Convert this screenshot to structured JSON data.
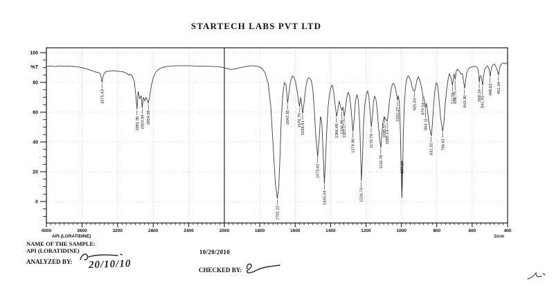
{
  "header": {
    "title": "STARTECH LABS PVT LTD"
  },
  "footer": {
    "name_of_sample_label": "NAME OF THE SAMPLE:",
    "sample_name": "API (LORATIDINE)",
    "print_date": "10/20/2010",
    "analyzed_by_label": "ANALYZED BY:",
    "analyzed_handwritten_date": "20/10/10",
    "checked_by_label": "CHECKED BY:"
  },
  "colors": {
    "curve": "#3a3a3a",
    "grid": "#aaaaaa",
    "axis": "#000000",
    "background": "#ffffff"
  },
  "chart_data": {
    "type": "line",
    "title": "STARTECH LABS PVT LTD",
    "xlabel": "1/cm",
    "ylabel": "%T",
    "sample_label": "API (LORATIDINE)",
    "grid": "dotted",
    "x_axis": {
      "unit": "1/cm",
      "break_at": 2000,
      "segments": [
        {
          "min": 2000,
          "max": 4000,
          "major": 400,
          "minor": 50,
          "labels": [
            4000,
            3600,
            3200,
            2800,
            2400,
            2000
          ]
        },
        {
          "min": 400,
          "max": 2000,
          "major": 200,
          "minor": 25,
          "labels": [
            1800,
            1600,
            1400,
            1200,
            1000,
            800,
            600,
            400
          ]
        }
      ]
    },
    "y_axis": {
      "min": 0,
      "max": 100,
      "major": 20,
      "minor": 5,
      "labels": [
        100,
        80,
        60,
        40,
        20,
        0
      ],
      "unit": "%T"
    },
    "peaks": [
      {
        "label": "3375.43",
        "wn": 3375.43,
        "t": 80
      },
      {
        "label": "2981.95",
        "wn": 2981.95,
        "t": 62
      },
      {
        "label": "2924.09",
        "wn": 2924.09,
        "t": 63
      },
      {
        "label": "2854.65",
        "wn": 2854.65,
        "t": 66
      },
      {
        "label": "1701.22",
        "wn": 1701.22,
        "t": 2
      },
      {
        "label": "1643.35",
        "wn": 1643.35,
        "t": 66
      },
      {
        "label": "1576.70",
        "wn": 1576.7,
        "t": 64
      },
      {
        "label": "1558.41",
        "wn": 1558.41,
        "t": 59
      },
      {
        "label": "1473.62",
        "wn": 1473.62,
        "t": 30
      },
      {
        "label": "1435.04",
        "wn": 1435.04,
        "t": 12
      },
      {
        "label": "1366.66",
        "wn": 1366.66,
        "t": 57
      },
      {
        "label": "1336.96",
        "wn": 1336.96,
        "t": 61,
        "lt": 55
      },
      {
        "label": "1323.17",
        "wn": 1323.17,
        "t": 57
      },
      {
        "label": "1274.95",
        "wn": 1274.95,
        "t": 47
      },
      {
        "label": "1226.73",
        "wn": 1226.73,
        "t": 14
      },
      {
        "label": "1170.79",
        "wn": 1170.79,
        "t": 50
      },
      {
        "label": "1116.78",
        "wn": 1116.78,
        "t": 36
      },
      {
        "label": "1095.57",
        "wn": 1095.57,
        "t": 57
      },
      {
        "label": "1080.14",
        "wn": 1080.14,
        "t": 54,
        "lt": 48
      },
      {
        "label": "1022.27",
        "wn": 1022.27,
        "t": 68
      },
      {
        "label": "997.20",
        "wn": 997.2,
        "t": 3,
        "lt": 27
      },
      {
        "label": "925.83",
        "wn": 925.83,
        "t": 74
      },
      {
        "label": "879.54",
        "wn": 879.54,
        "t": 71
      },
      {
        "label": "864.11",
        "wn": 864.11,
        "t": 63,
        "lt": 56
      },
      {
        "label": "831.32",
        "wn": 831.32,
        "t": 44
      },
      {
        "label": "766.61",
        "wn": 766.61,
        "t": 47
      },
      {
        "label": "711.08",
        "wn": 711.08,
        "t": 78
      },
      {
        "label": "696.75",
        "wn": 696.75,
        "t": 82,
        "lt": 74
      },
      {
        "label": "643.30",
        "wn": 643.3,
        "t": 76
      },
      {
        "label": "560.14",
        "wn": 560.14,
        "t": 80
      },
      {
        "label": "541.93",
        "wn": 541.93,
        "t": 78,
        "lt": 71
      },
      {
        "label": "498.62",
        "wn": 498.62,
        "t": 84
      },
      {
        "label": "451.34",
        "wn": 451.34,
        "t": 85
      }
    ],
    "trace": [
      [
        4000,
        90.8
      ],
      [
        3950,
        91
      ],
      [
        3900,
        90.6
      ],
      [
        3850,
        91.1
      ],
      [
        3800,
        90.8
      ],
      [
        3750,
        90.9
      ],
      [
        3700,
        90.7
      ],
      [
        3650,
        90.4
      ],
      [
        3600,
        89.9
      ],
      [
        3550,
        89.1
      ],
      [
        3500,
        88.1
      ],
      [
        3460,
        87.2
      ],
      [
        3430,
        86.8
      ],
      [
        3400,
        86.2
      ],
      [
        3388,
        84.5
      ],
      [
        3375,
        80
      ],
      [
        3363,
        84
      ],
      [
        3350,
        86
      ],
      [
        3330,
        87.2
      ],
      [
        3300,
        87.6
      ],
      [
        3260,
        87.8
      ],
      [
        3220,
        87.7
      ],
      [
        3180,
        87.4
      ],
      [
        3140,
        87.1
      ],
      [
        3100,
        86.3
      ],
      [
        3075,
        84.8
      ],
      [
        3058,
        85.6
      ],
      [
        3035,
        84.2
      ],
      [
        3012,
        80.5
      ],
      [
        2996,
        72
      ],
      [
        2981,
        62
      ],
      [
        2969,
        74
      ],
      [
        2950,
        69
      ],
      [
        2935,
        71
      ],
      [
        2924,
        63
      ],
      [
        2910,
        70
      ],
      [
        2895,
        67.5
      ],
      [
        2882,
        70
      ],
      [
        2866,
        68
      ],
      [
        2854,
        66
      ],
      [
        2838,
        71
      ],
      [
        2820,
        78
      ],
      [
        2800,
        83
      ],
      [
        2775,
        86.5
      ],
      [
        2745,
        88.5
      ],
      [
        2700,
        90
      ],
      [
        2640,
        90.8
      ],
      [
        2560,
        91.1
      ],
      [
        2480,
        91.2
      ],
      [
        2400,
        91.2
      ],
      [
        2320,
        91
      ],
      [
        2240,
        90.9
      ],
      [
        2160,
        90.8
      ],
      [
        2090,
        90.6
      ],
      [
        2030,
        90.3
      ],
      [
        1995,
        89.6
      ],
      [
        1962,
        88.7
      ],
      [
        1940,
        89
      ],
      [
        1918,
        89.7
      ],
      [
        1895,
        90.3
      ],
      [
        1868,
        90.9
      ],
      [
        1838,
        91.2
      ],
      [
        1810,
        90.8
      ],
      [
        1788,
        89.4
      ],
      [
        1770,
        86.5
      ],
      [
        1752,
        79
      ],
      [
        1738,
        64
      ],
      [
        1724,
        36
      ],
      [
        1712,
        12
      ],
      [
        1701,
        2
      ],
      [
        1693,
        9
      ],
      [
        1686,
        30
      ],
      [
        1679,
        55
      ],
      [
        1670,
        72
      ],
      [
        1661,
        80
      ],
      [
        1652,
        78.5
      ],
      [
        1643,
        66
      ],
      [
        1637,
        71
      ],
      [
        1630,
        78
      ],
      [
        1622,
        82.5
      ],
      [
        1614,
        84.4
      ],
      [
        1606,
        83.2
      ],
      [
        1597,
        80
      ],
      [
        1587,
        72.5
      ],
      [
        1576,
        64
      ],
      [
        1568,
        70
      ],
      [
        1558,
        59
      ],
      [
        1549,
        67
      ],
      [
        1541,
        76
      ],
      [
        1533,
        81
      ],
      [
        1525,
        83.2
      ],
      [
        1517,
        82.6
      ],
      [
        1509,
        81
      ],
      [
        1501,
        76
      ],
      [
        1493,
        63
      ],
      [
        1484,
        45
      ],
      [
        1473,
        30
      ],
      [
        1464,
        43
      ],
      [
        1457,
        57
      ],
      [
        1450,
        54
      ],
      [
        1443,
        35
      ],
      [
        1435,
        12
      ],
      [
        1429,
        27
      ],
      [
        1422,
        47
      ],
      [
        1415,
        62
      ],
      [
        1407,
        71.5
      ],
      [
        1399,
        76.4
      ],
      [
        1391,
        78.2
      ],
      [
        1383,
        74
      ],
      [
        1375,
        65.5
      ],
      [
        1366,
        57
      ],
      [
        1358,
        62.5
      ],
      [
        1351,
        67.5
      ],
      [
        1344,
        64
      ],
      [
        1336,
        61
      ],
      [
        1330,
        63.5
      ],
      [
        1323,
        57
      ],
      [
        1316,
        62.8
      ],
      [
        1309,
        69.5
      ],
      [
        1301,
        73.4
      ],
      [
        1293,
        71
      ],
      [
        1284,
        62
      ],
      [
        1274,
        47
      ],
      [
        1266,
        56.5
      ],
      [
        1259,
        67.5
      ],
      [
        1251,
        71.8
      ],
      [
        1243,
        68
      ],
      [
        1235,
        50
      ],
      [
        1226,
        14
      ],
      [
        1220,
        29
      ],
      [
        1214,
        51
      ],
      [
        1207,
        64.5
      ],
      [
        1199,
        71.6
      ],
      [
        1191,
        74.4
      ],
      [
        1183,
        70
      ],
      [
        1177,
        60
      ],
      [
        1170,
        50
      ],
      [
        1164,
        56.5
      ],
      [
        1158,
        66.5
      ],
      [
        1151,
        70.8
      ],
      [
        1144,
        69
      ],
      [
        1137,
        62
      ],
      [
        1129,
        50
      ],
      [
        1122,
        41
      ],
      [
        1116,
        36
      ],
      [
        1110,
        45.5
      ],
      [
        1104,
        53.5
      ],
      [
        1097,
        57
      ],
      [
        1091,
        55.5
      ],
      [
        1085,
        54.5
      ],
      [
        1080,
        54
      ],
      [
        1074,
        59
      ],
      [
        1067,
        67.5
      ],
      [
        1059,
        74.5
      ],
      [
        1051,
        78.8
      ],
      [
        1043,
        79.4
      ],
      [
        1035,
        77
      ],
      [
        1028,
        72.5
      ],
      [
        1022,
        68
      ],
      [
        1017,
        71
      ],
      [
        1012,
        67
      ],
      [
        1006,
        48
      ],
      [
        1001,
        20
      ],
      [
        997,
        3
      ],
      [
        993,
        18
      ],
      [
        989,
        45
      ],
      [
        983,
        66
      ],
      [
        976,
        78
      ],
      [
        969,
        82.8
      ],
      [
        961,
        84.4
      ],
      [
        953,
        83.2
      ],
      [
        945,
        80
      ],
      [
        939,
        76.8
      ],
      [
        932,
        74.6
      ],
      [
        925,
        74
      ],
      [
        919,
        77.5
      ],
      [
        912,
        81.5
      ],
      [
        905,
        83.8
      ],
      [
        898,
        82.2
      ],
      [
        891,
        79
      ],
      [
        885,
        76
      ],
      [
        879,
        71
      ],
      [
        874,
        70.5
      ],
      [
        869,
        66.5
      ],
      [
        864,
        63
      ],
      [
        859,
        66
      ],
      [
        853,
        61.5
      ],
      [
        846,
        54.5
      ],
      [
        838,
        48
      ],
      [
        831,
        44
      ],
      [
        825,
        52
      ],
      [
        818,
        64.5
      ],
      [
        811,
        74
      ],
      [
        803,
        79.8
      ],
      [
        795,
        78
      ],
      [
        787,
        68
      ],
      [
        779,
        57
      ],
      [
        772,
        51
      ],
      [
        766,
        47
      ],
      [
        760,
        53
      ],
      [
        753,
        64.5
      ],
      [
        745,
        74.5
      ],
      [
        737,
        81.5
      ],
      [
        729,
        85.8
      ],
      [
        721,
        84
      ],
      [
        716,
        80.5
      ],
      [
        711,
        78
      ],
      [
        706,
        83
      ],
      [
        702,
        85.8
      ],
      [
        696,
        82
      ],
      [
        691,
        87
      ],
      [
        684,
        89
      ],
      [
        678,
        88
      ],
      [
        670,
        87
      ],
      [
        662,
        85.5
      ],
      [
        655,
        85.8
      ],
      [
        648,
        80
      ],
      [
        643,
        76
      ],
      [
        638,
        80.5
      ],
      [
        631,
        86.5
      ],
      [
        622,
        89
      ],
      [
        612,
        90
      ],
      [
        601,
        90.4
      ],
      [
        590,
        90.7
      ],
      [
        579,
        90.8
      ],
      [
        570,
        89.8
      ],
      [
        565,
        87.8
      ],
      [
        560,
        80
      ],
      [
        556,
        84
      ],
      [
        551,
        84.4
      ],
      [
        546,
        82
      ],
      [
        541,
        78
      ],
      [
        536,
        84
      ],
      [
        529,
        88.8
      ],
      [
        521,
        90.4
      ],
      [
        512,
        91
      ],
      [
        505,
        89
      ],
      [
        498,
        84
      ],
      [
        494,
        88
      ],
      [
        489,
        90.6
      ],
      [
        482,
        91.8
      ],
      [
        473,
        92.3
      ],
      [
        464,
        90.2
      ],
      [
        457,
        87.5
      ],
      [
        451,
        85
      ],
      [
        446,
        89
      ],
      [
        440,
        91.6
      ],
      [
        432,
        92.6
      ],
      [
        423,
        93.2
      ],
      [
        414,
        92.4
      ],
      [
        407,
        93
      ],
      [
        400,
        93.2
      ]
    ]
  }
}
